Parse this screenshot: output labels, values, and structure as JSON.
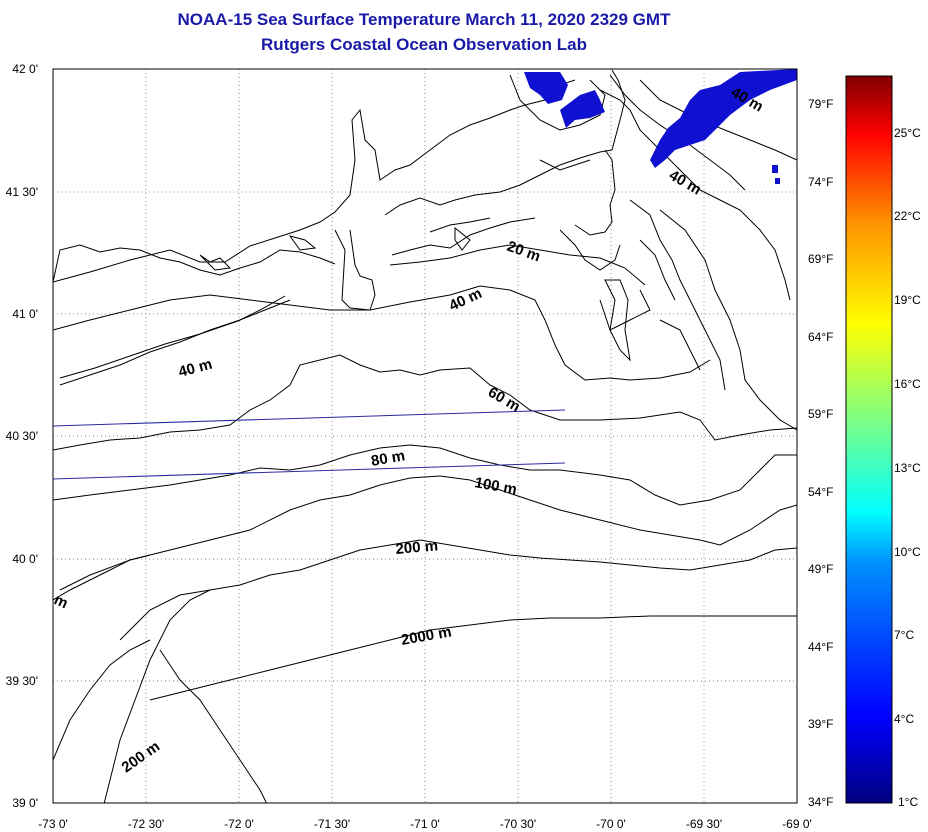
{
  "title": "NOAA-15 Sea Surface Temperature March 11, 2020 2329 GMT",
  "subtitle": "Rutgers Coastal Ocean Observation Lab",
  "lat_labels": [
    "42 0'",
    "41 30'",
    "41 0'",
    "40 30'",
    "40 0'",
    "39 30'",
    "39 0'"
  ],
  "lon_labels": [
    "-73 0'",
    "-72 30'",
    "-72 0'",
    "-71 30'",
    "-71 0'",
    "-70 30'",
    "-70 0'",
    "-69 30'",
    "-69 0'"
  ],
  "fahrenheit_labels": [
    "79°F",
    "74°F",
    "69°F",
    "64°F",
    "59°F",
    "54°F",
    "49°F",
    "44°F",
    "39°F",
    "34°F"
  ],
  "celsius_labels": [
    "25°C",
    "22°C",
    "19°C",
    "16°C",
    "13°C",
    "10°C",
    "7°C",
    "4°C",
    "1°C"
  ],
  "contour_labels": [
    "20 m",
    "40 m",
    "40 m",
    "40 m",
    "60 m",
    "80 m",
    "100 m",
    "200 m",
    "2000 m",
    "200 m",
    "40 m",
    "m"
  ],
  "colors": {
    "title": "#1a1aa8",
    "sst_patch": "#1010d0",
    "track": "#2a2aa0",
    "colorbar": [
      "#000080",
      "#0000ff",
      "#0090ff",
      "#00ffff",
      "#80ff80",
      "#ffff00",
      "#ff9000",
      "#ff0000",
      "#800000"
    ]
  }
}
